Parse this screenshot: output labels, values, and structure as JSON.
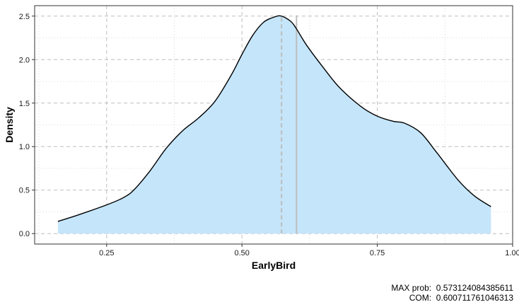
{
  "chart_data": {
    "type": "area",
    "title": "",
    "xlabel": "EarlyBird",
    "ylabel": "Density",
    "xlim": [
      0.117,
      1.0
    ],
    "ylim": [
      -0.12,
      2.62
    ],
    "x_ticks": [
      0.25,
      0.5,
      0.75,
      1.0
    ],
    "x_tick_labels": [
      "0.25",
      "0.50",
      "0.75",
      "1.00"
    ],
    "y_ticks": [
      0.0,
      0.5,
      1.0,
      1.5,
      2.0,
      2.5
    ],
    "y_tick_labels": [
      "0.0",
      "0.5",
      "1.0",
      "1.5",
      "2.0",
      "2.5"
    ],
    "grid": true,
    "legend": "none",
    "fill_color": "#c5e5fa",
    "line_color": "#000000",
    "series": [
      {
        "x": [
          0.16,
          0.2,
          0.25,
          0.28,
          0.3,
          0.33,
          0.36,
          0.39,
          0.42,
          0.45,
          0.48,
          0.5,
          0.52,
          0.54,
          0.56,
          0.573,
          0.59,
          0.6,
          0.62,
          0.65,
          0.68,
          0.72,
          0.75,
          0.78,
          0.8,
          0.83,
          0.86,
          0.9,
          0.93,
          0.96
        ],
        "y": [
          0.14,
          0.22,
          0.33,
          0.41,
          0.5,
          0.72,
          0.98,
          1.18,
          1.33,
          1.52,
          1.82,
          2.06,
          2.28,
          2.43,
          2.49,
          2.5,
          2.44,
          2.36,
          2.16,
          1.91,
          1.68,
          1.46,
          1.35,
          1.29,
          1.27,
          1.16,
          0.93,
          0.61,
          0.43,
          0.31
        ]
      }
    ],
    "vlines": [
      {
        "x": 0.573124084385611,
        "style": "dashed",
        "color": "#bdbdbd"
      },
      {
        "x": 0.600711761046313,
        "style": "solid",
        "color": "#bdbdbd"
      }
    ]
  },
  "caption": {
    "max_prob": "MAX prob:  0.573124084385611",
    "com": "COM:  0.600711761046313"
  }
}
